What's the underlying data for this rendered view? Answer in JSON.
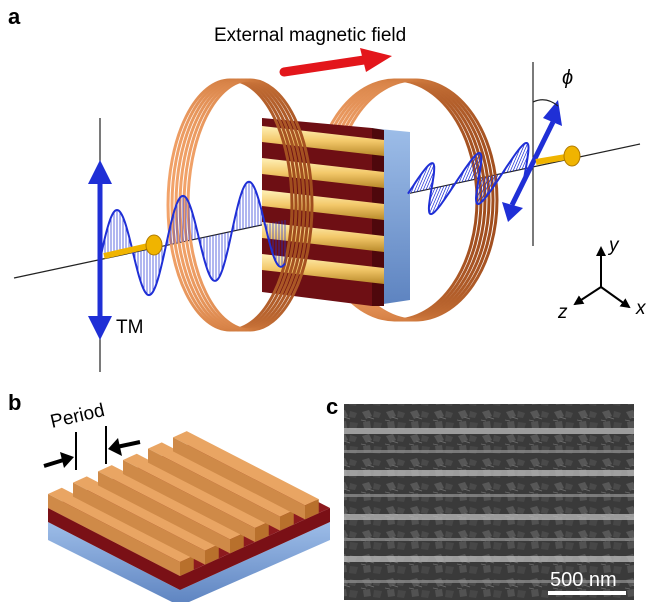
{
  "panels": {
    "a": {
      "letter": "a",
      "field_label": "External magnetic field",
      "polarization_label": "TM",
      "angle_symbol": "ϕ",
      "axes": {
        "x": "x",
        "y": "y",
        "z": "z"
      }
    },
    "b": {
      "letter": "b",
      "period_label": "Period"
    },
    "c": {
      "letter": "c",
      "scale_bar_label": "500 nm"
    }
  },
  "colors": {
    "coil": "#c8733a",
    "wave": "#1f2fd6",
    "field_arrow": "#e3161b",
    "beam": "#f0b400",
    "gold_stripe": "#f3c86a",
    "garnet": "#6e0f14",
    "substrate": "#7fa5dd",
    "sem_background": "#3a3a3a"
  }
}
